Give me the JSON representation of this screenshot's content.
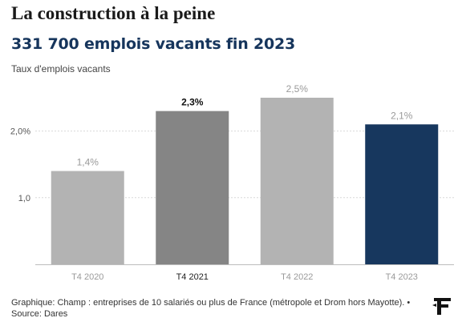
{
  "title": "La construction à la peine",
  "subtitle": "331 700 emplois vacants fin 2023",
  "footer": "Graphique: Champ : entreprises de 10 salariés ou plus de France (métropole et Drom hors Mayotte). • Source: Dares",
  "chart_data": {
    "type": "bar",
    "ylabel": "Taux d'emplois vacants",
    "categories": [
      "T4 2020",
      "T4 2021",
      "T4 2022",
      "T4 2023"
    ],
    "values": [
      1.4,
      2.3,
      2.5,
      2.1
    ],
    "value_labels": [
      "1,4%",
      "2,3%",
      "2,5%",
      "2,1%"
    ],
    "yticks": [
      1.0,
      2.0
    ],
    "ytick_labels": [
      "1,0",
      "2,0%"
    ],
    "ylim": [
      0,
      2.5
    ],
    "grid": true,
    "colors": [
      "#b3b3b3",
      "#858585",
      "#b3b3b3",
      "#17375e"
    ],
    "highlighted_category": "T4 2021"
  }
}
